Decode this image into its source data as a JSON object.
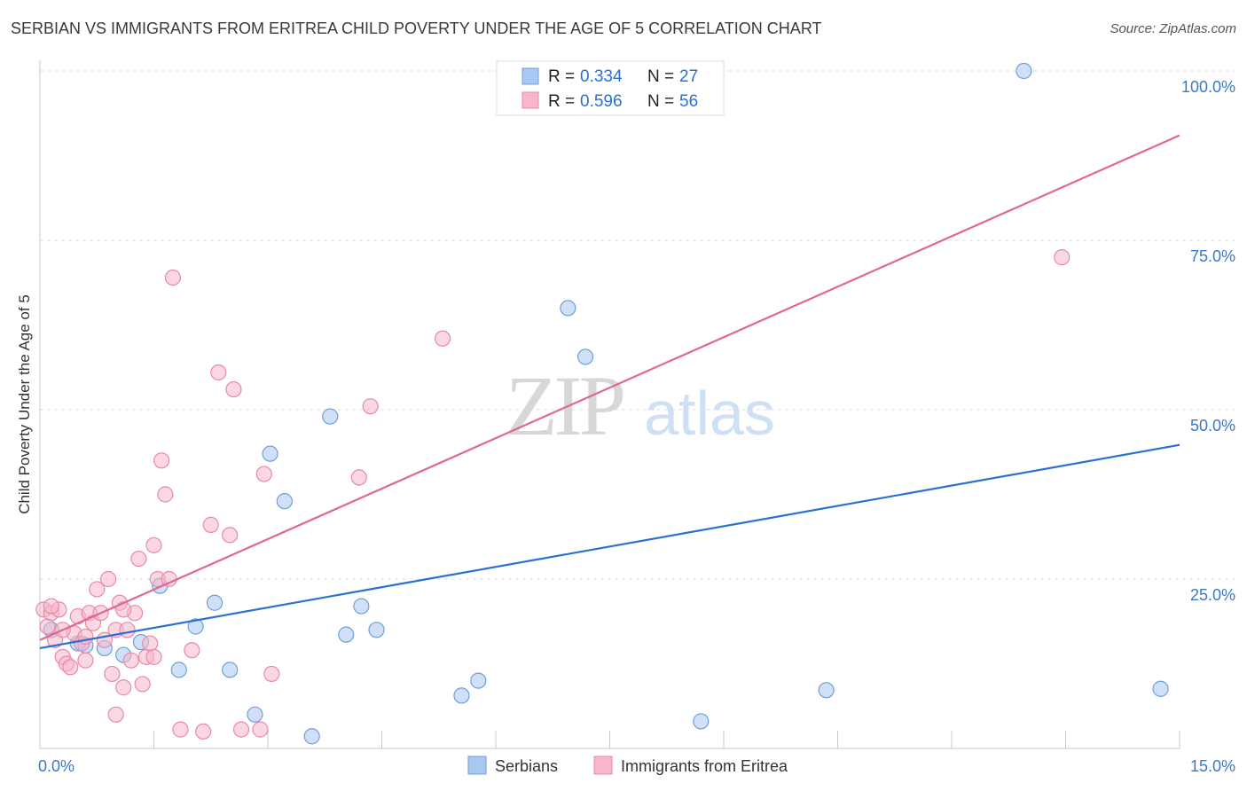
{
  "title": "SERBIAN VS IMMIGRANTS FROM ERITREA CHILD POVERTY UNDER THE AGE OF 5 CORRELATION CHART",
  "source": "Source: ZipAtlas.com",
  "watermark": {
    "zip": "ZIP",
    "atlas": "atlas"
  },
  "chart_data": {
    "type": "scatter",
    "title": "SERBIAN VS IMMIGRANTS FROM ERITREA CHILD POVERTY UNDER THE AGE OF 5 CORRELATION CHART",
    "xlabel": "",
    "ylabel": "Child Poverty Under the Age of 5",
    "xlim": [
      0,
      15
    ],
    "ylim": [
      0,
      100
    ],
    "x_tick_labels": [
      "0.0%",
      "15.0%"
    ],
    "y_ticks": [
      25,
      50,
      75,
      100
    ],
    "y_tick_labels": [
      "25.0%",
      "50.0%",
      "75.0%",
      "100.0%"
    ],
    "grid": true,
    "legend_position": "top-center",
    "stats": [
      {
        "r_label": "R =",
        "r": "0.334",
        "n_label": "N =",
        "n": "27"
      },
      {
        "r_label": "R =",
        "r": "0.596",
        "n_label": "N =",
        "n": "56"
      }
    ],
    "series": [
      {
        "name": "Serbians",
        "color": "#a9c8f0",
        "stroke": "#6f9fd8",
        "line_color": "#2a70d0",
        "trend": {
          "x": [
            0,
            15
          ],
          "y": [
            14.8,
            44.8
          ]
        },
        "points": [
          {
            "x": 0.15,
            "y": 17.5
          },
          {
            "x": 0.5,
            "y": 15.5
          },
          {
            "x": 0.6,
            "y": 15.2
          },
          {
            "x": 0.85,
            "y": 14.8
          },
          {
            "x": 1.1,
            "y": 13.8
          },
          {
            "x": 1.33,
            "y": 15.7
          },
          {
            "x": 1.58,
            "y": 24
          },
          {
            "x": 1.83,
            "y": 11.6
          },
          {
            "x": 2.05,
            "y": 18
          },
          {
            "x": 2.3,
            "y": 21.5
          },
          {
            "x": 2.5,
            "y": 11.6
          },
          {
            "x": 2.83,
            "y": 5
          },
          {
            "x": 3.03,
            "y": 43.5
          },
          {
            "x": 3.22,
            "y": 36.5
          },
          {
            "x": 3.58,
            "y": 1.8
          },
          {
            "x": 3.82,
            "y": 49
          },
          {
            "x": 4.03,
            "y": 16.8
          },
          {
            "x": 4.23,
            "y": 21
          },
          {
            "x": 4.43,
            "y": 17.5
          },
          {
            "x": 5.55,
            "y": 7.8
          },
          {
            "x": 5.77,
            "y": 10
          },
          {
            "x": 6.95,
            "y": 65
          },
          {
            "x": 7.18,
            "y": 57.8
          },
          {
            "x": 8.7,
            "y": 4
          },
          {
            "x": 10.35,
            "y": 8.6
          },
          {
            "x": 12.95,
            "y": 100
          },
          {
            "x": 14.75,
            "y": 8.8
          }
        ]
      },
      {
        "name": "Immigrants from Eritrea",
        "color": "#f7b6cb",
        "stroke": "#e889a8",
        "line_color": "#e06790",
        "trend": {
          "x": [
            0,
            15
          ],
          "y": [
            16,
            90.5
          ]
        },
        "points": [
          {
            "x": 0.05,
            "y": 20.5
          },
          {
            "x": 0.1,
            "y": 18
          },
          {
            "x": 0.15,
            "y": 20
          },
          {
            "x": 0.2,
            "y": 16
          },
          {
            "x": 0.25,
            "y": 20.5
          },
          {
            "x": 0.3,
            "y": 13.5
          },
          {
            "x": 0.35,
            "y": 12.5
          },
          {
            "x": 0.4,
            "y": 12
          },
          {
            "x": 0.45,
            "y": 17
          },
          {
            "x": 0.5,
            "y": 19.5
          },
          {
            "x": 0.55,
            "y": 15.5
          },
          {
            "x": 0.6,
            "y": 13
          },
          {
            "x": 0.65,
            "y": 20
          },
          {
            "x": 0.7,
            "y": 18.5
          },
          {
            "x": 0.75,
            "y": 23.5
          },
          {
            "x": 0.8,
            "y": 20
          },
          {
            "x": 0.85,
            "y": 16
          },
          {
            "x": 0.9,
            "y": 25
          },
          {
            "x": 0.95,
            "y": 11
          },
          {
            "x": 1,
            "y": 17.5
          },
          {
            "x": 1.05,
            "y": 21.5
          },
          {
            "x": 1.1,
            "y": 9
          },
          {
            "x": 1.15,
            "y": 17.5
          },
          {
            "x": 1.2,
            "y": 13
          },
          {
            "x": 1.25,
            "y": 20
          },
          {
            "x": 1.3,
            "y": 28
          },
          {
            "x": 1.35,
            "y": 9.5
          },
          {
            "x": 1.4,
            "y": 13.5
          },
          {
            "x": 1.45,
            "y": 15.5
          },
          {
            "x": 1.5,
            "y": 30
          },
          {
            "x": 1.55,
            "y": 25
          },
          {
            "x": 1.6,
            "y": 42.5
          },
          {
            "x": 1.65,
            "y": 37.5
          },
          {
            "x": 1.7,
            "y": 25
          },
          {
            "x": 1.75,
            "y": 69.5
          },
          {
            "x": 1.85,
            "y": 2.8
          },
          {
            "x": 2.0,
            "y": 14.5
          },
          {
            "x": 2.15,
            "y": 2.5
          },
          {
            "x": 2.25,
            "y": 33
          },
          {
            "x": 2.35,
            "y": 55.5
          },
          {
            "x": 2.5,
            "y": 31.5
          },
          {
            "x": 2.55,
            "y": 53
          },
          {
            "x": 2.65,
            "y": 2.8
          },
          {
            "x": 2.9,
            "y": 2.8
          },
          {
            "x": 2.95,
            "y": 40.5
          },
          {
            "x": 3.05,
            "y": 11
          },
          {
            "x": 4.2,
            "y": 40
          },
          {
            "x": 4.35,
            "y": 50.5
          },
          {
            "x": 5.3,
            "y": 60.5
          },
          {
            "x": 1.0,
            "y": 5
          },
          {
            "x": 0.6,
            "y": 16.5
          },
          {
            "x": 1.1,
            "y": 20.5
          },
          {
            "x": 0.3,
            "y": 17.5
          },
          {
            "x": 1.5,
            "y": 13.5
          },
          {
            "x": 0.15,
            "y": 21
          },
          {
            "x": 13.45,
            "y": 72.5
          }
        ]
      }
    ]
  }
}
